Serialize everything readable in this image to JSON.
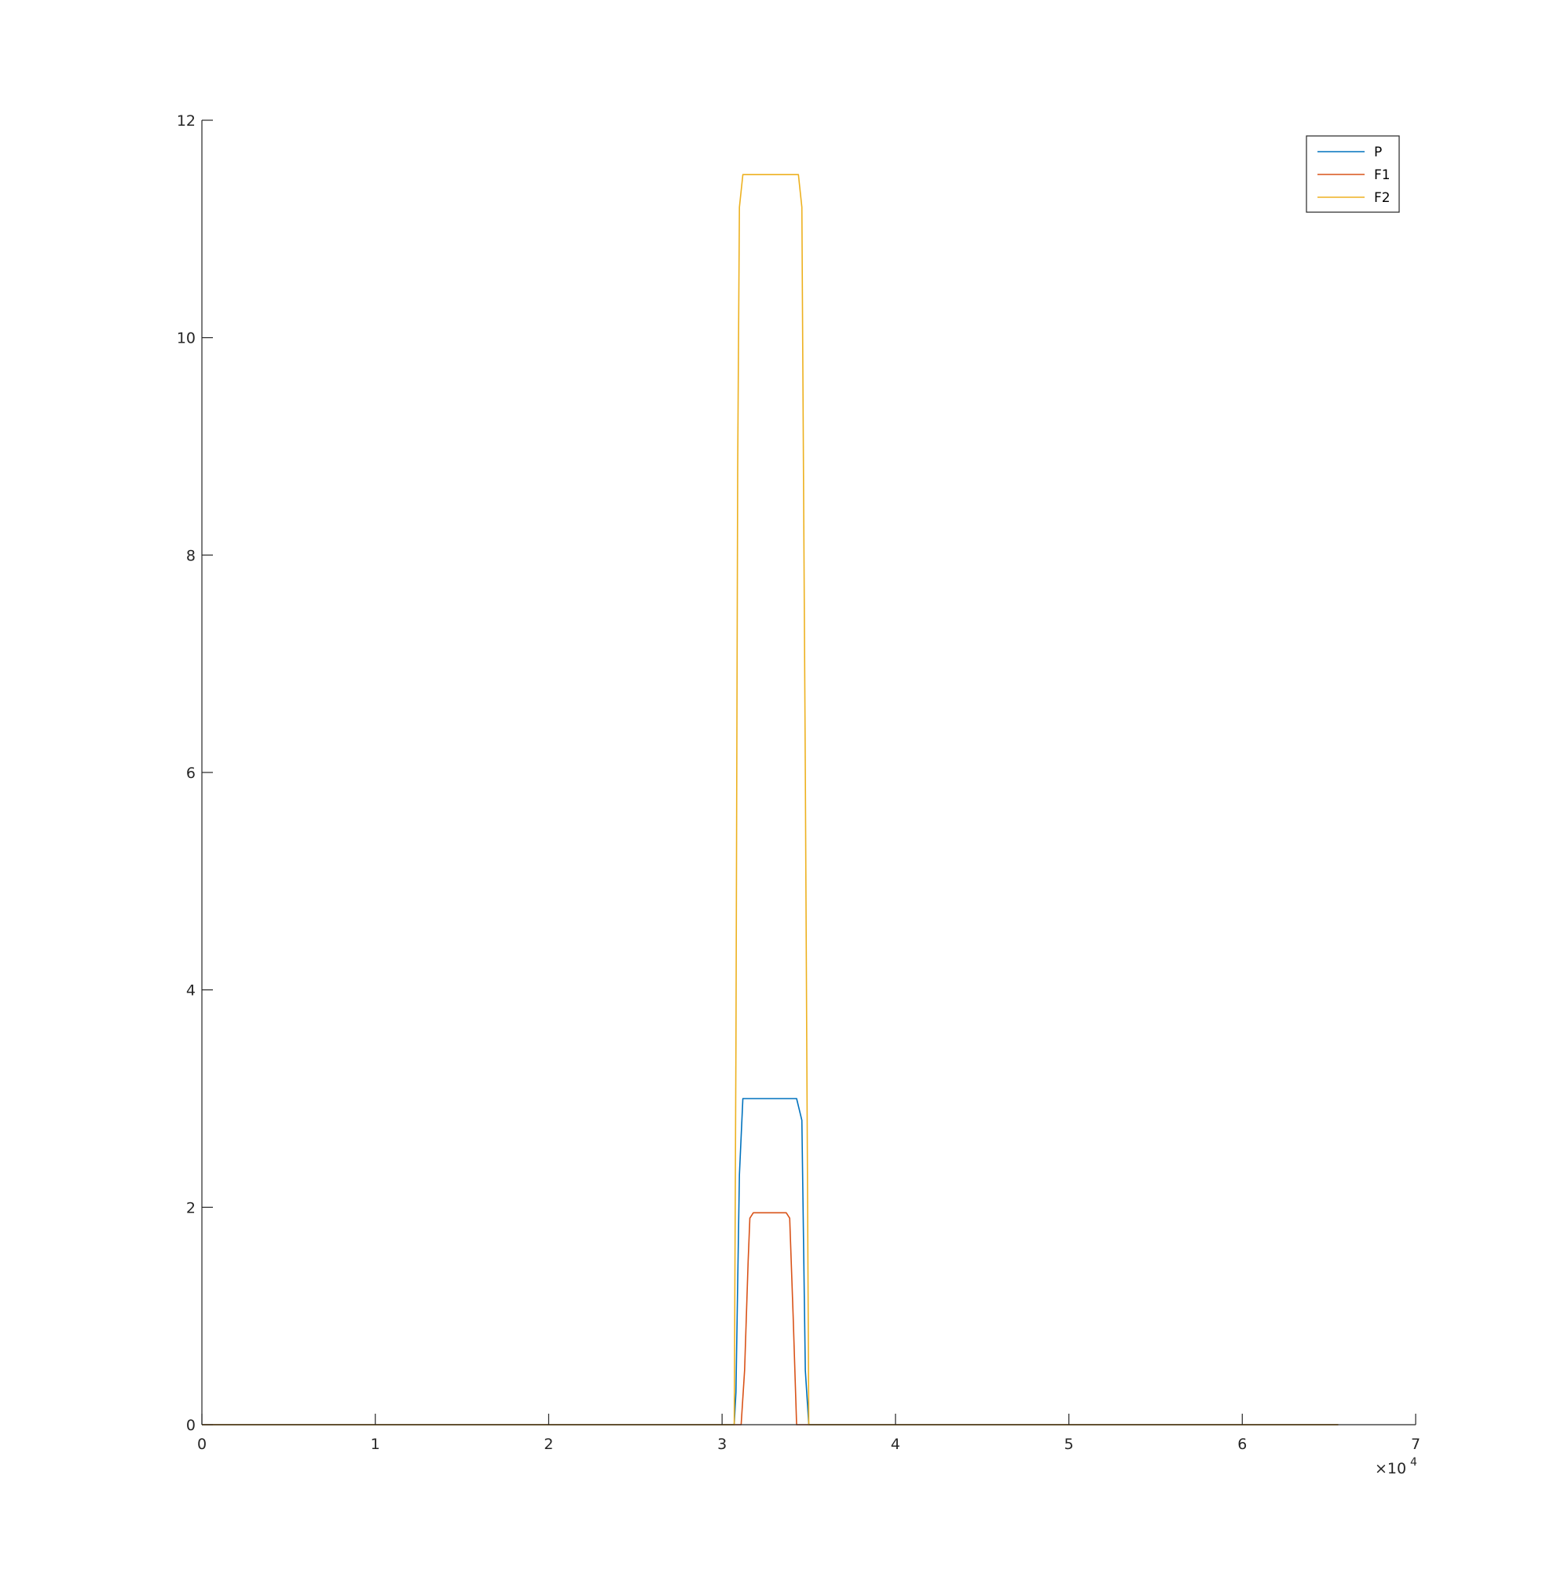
{
  "chart_data": {
    "type": "line",
    "title": "",
    "xlabel": "",
    "ylabel": "",
    "xlim": [
      0,
      70000
    ],
    "ylim": [
      0,
      12
    ],
    "x_exponent_label": "×10",
    "x_exponent_power": "4",
    "x_ticks": [
      {
        "value": 0,
        "label": "0"
      },
      {
        "value": 10000,
        "label": "1"
      },
      {
        "value": 20000,
        "label": "2"
      },
      {
        "value": 30000,
        "label": "3"
      },
      {
        "value": 40000,
        "label": "4"
      },
      {
        "value": 50000,
        "label": "5"
      },
      {
        "value": 60000,
        "label": "6"
      },
      {
        "value": 70000,
        "label": "7"
      }
    ],
    "y_ticks": [
      {
        "value": 0,
        "label": "0"
      },
      {
        "value": 2,
        "label": "2"
      },
      {
        "value": 4,
        "label": "4"
      },
      {
        "value": 6,
        "label": "6"
      },
      {
        "value": 8,
        "label": "8"
      },
      {
        "value": 10,
        "label": "10"
      },
      {
        "value": 12,
        "label": "12"
      }
    ],
    "grid": false,
    "legend_position": "top-right",
    "series": [
      {
        "name": "P",
        "color": "#0072BD",
        "x": [
          0,
          30700,
          30800,
          31000,
          31200,
          34300,
          34600,
          34800,
          35000,
          65536
        ],
        "y": [
          0,
          0,
          0.3,
          2.3,
          3.0,
          3.0,
          2.8,
          0.5,
          0,
          0
        ]
      },
      {
        "name": "F1",
        "color": "#D95319",
        "x": [
          0,
          31100,
          31300,
          31500,
          31600,
          31800,
          33700,
          33900,
          34100,
          34300,
          65536
        ],
        "y": [
          0,
          0,
          0.5,
          1.5,
          1.9,
          1.95,
          1.95,
          1.9,
          1.0,
          0,
          0
        ]
      },
      {
        "name": "F2",
        "color": "#EDB120",
        "x": [
          0,
          30700,
          30800,
          30900,
          31000,
          31200,
          34400,
          34600,
          34800,
          35000,
          65536
        ],
        "y": [
          0,
          0,
          3.5,
          8.8,
          11.2,
          11.5,
          11.5,
          11.2,
          6.0,
          0,
          0
        ]
      }
    ]
  }
}
